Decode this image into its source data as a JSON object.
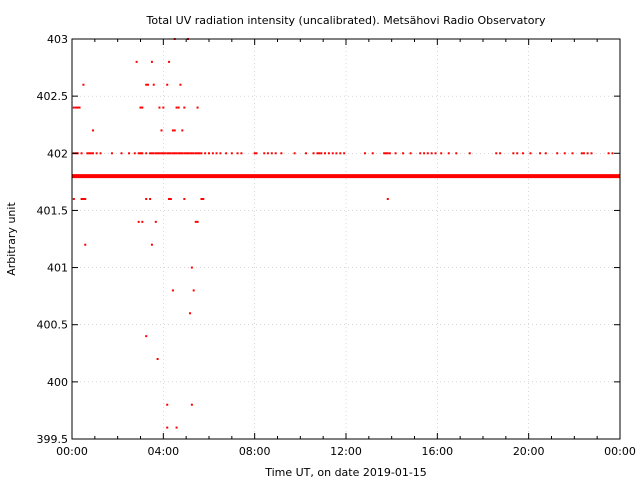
{
  "chart_data": {
    "type": "scatter",
    "title": "Total UV radiation intensity (uncalibrated). Metsähovi Radio Observatory",
    "xlabel": "Time UT, on date 2019-01-15",
    "ylabel": "Arbitrary unit",
    "xlim": [
      0,
      24
    ],
    "ylim": [
      399.5,
      403
    ],
    "x_ticks": [
      0,
      4,
      8,
      12,
      16,
      20,
      24
    ],
    "x_tick_labels": [
      "00:00",
      "04:00",
      "08:00",
      "12:00",
      "16:00",
      "20:00",
      "00:00"
    ],
    "y_ticks": [
      399.5,
      400,
      400.5,
      401,
      401.5,
      402,
      402.5,
      403
    ],
    "y_tick_labels": [
      "399.5",
      "400",
      "400.5",
      "401",
      "401.5",
      "402",
      "402.5",
      "403"
    ],
    "grid": true,
    "marker_color": "#ff0000",
    "baseline": {
      "y": 401.8,
      "x_start": 0,
      "x_end": 24
    },
    "series": [
      {
        "x": [
          0.08,
          0.17,
          0.25,
          0.42,
          0.67,
          0.75,
          0.83,
          0.92,
          1.08,
          1.25,
          1.75,
          2.17,
          2.5,
          2.75,
          2.92,
          3.0,
          3.08,
          3.25,
          3.42,
          3.5,
          3.58,
          3.67,
          3.75,
          3.83,
          3.92,
          4.0,
          4.08,
          4.17,
          4.25,
          4.33,
          4.42,
          4.5,
          4.58,
          4.67,
          4.75,
          4.83,
          4.92,
          5.0,
          5.08,
          5.17,
          5.25,
          5.33,
          5.42,
          5.5,
          5.58,
          5.67,
          5.83,
          6.0,
          6.17,
          6.33,
          6.5,
          6.75,
          7.0,
          7.25,
          7.42,
          8.0,
          8.08,
          8.42,
          8.58,
          8.75,
          8.92,
          9.17,
          9.75,
          10.25,
          10.58,
          10.75,
          10.83,
          10.92,
          11.08,
          11.25,
          11.42,
          11.58,
          11.75,
          11.92,
          12.83,
          13.17,
          13.67,
          13.75,
          13.83,
          13.92,
          14.17,
          14.5,
          14.83,
          15.25,
          15.42,
          15.58,
          15.75,
          15.92,
          16.17,
          16.5,
          16.83,
          17.42,
          18.58,
          18.75,
          19.33,
          19.5,
          19.75,
          20.08,
          20.5,
          20.75,
          21.25,
          21.58,
          21.92,
          22.33,
          22.42,
          22.58,
          22.75,
          23.5,
          23.67
        ],
        "y": [
          402,
          402,
          402,
          402,
          402,
          402,
          402,
          402,
          402,
          402,
          402,
          402,
          402,
          402,
          402,
          402,
          402,
          402,
          402,
          402,
          402,
          402,
          402,
          402,
          402,
          402,
          402,
          402,
          402,
          402,
          402,
          402,
          402,
          402,
          402,
          402,
          402,
          402,
          402,
          402,
          402,
          402,
          402,
          402,
          402,
          402,
          402,
          402,
          402,
          402,
          402,
          402,
          402,
          402,
          402,
          402,
          402,
          402,
          402,
          402,
          402,
          402,
          402,
          402,
          402,
          402,
          402,
          402,
          402,
          402,
          402,
          402,
          402,
          402,
          402,
          402,
          402,
          402,
          402,
          402,
          402,
          402,
          402,
          402,
          402,
          402,
          402,
          402,
          402,
          402,
          402,
          402,
          402,
          402,
          402,
          402,
          402,
          402,
          402,
          402,
          402,
          402,
          402,
          402,
          402,
          402,
          402,
          402,
          402
        ]
      },
      {
        "x": [
          0.08,
          0.17,
          0.25,
          0.33,
          0.5,
          0.92,
          2.83,
          3.0,
          3.08,
          3.25,
          3.33,
          3.5,
          3.58,
          3.83,
          3.92,
          4.0,
          4.17,
          4.25,
          4.42,
          4.5,
          4.58,
          4.67,
          4.75,
          4.83,
          4.92,
          5.5
        ],
        "y": [
          402.4,
          402.4,
          402.4,
          402.4,
          402.6,
          402.2,
          402.8,
          402.4,
          402.4,
          402.6,
          402.6,
          402.8,
          402.6,
          402.4,
          402.2,
          402.4,
          402.6,
          402.8,
          402.2,
          402.2,
          402.4,
          402.4,
          402.6,
          402.2,
          402.4,
          402.4
        ]
      },
      {
        "x": [
          0.08,
          0.42,
          0.5,
          0.58,
          2.92,
          3.08,
          3.25,
          3.42,
          3.67,
          4.25,
          4.33,
          4.92,
          5.42,
          5.5,
          5.67,
          5.75,
          13.83
        ],
        "y": [
          401.6,
          401.6,
          401.6,
          401.6,
          401.4,
          401.4,
          401.6,
          401.6,
          401.4,
          401.6,
          401.6,
          401.6,
          401.4,
          401.4,
          401.6,
          401.6,
          401.6
        ]
      },
      {
        "x": [
          0.58,
          3.5,
          5.25,
          4.42,
          5.33,
          5.17,
          3.25,
          3.75,
          4.17,
          4.58,
          5.25,
          4.17
        ],
        "y": [
          401.2,
          401.2,
          401.0,
          400.8,
          400.8,
          400.6,
          400.4,
          400.2,
          399.8,
          399.6,
          399.8,
          399.6
        ]
      },
      {
        "x": [
          4.5,
          5.08
        ],
        "y": [
          403.0,
          403.0
        ]
      }
    ]
  }
}
